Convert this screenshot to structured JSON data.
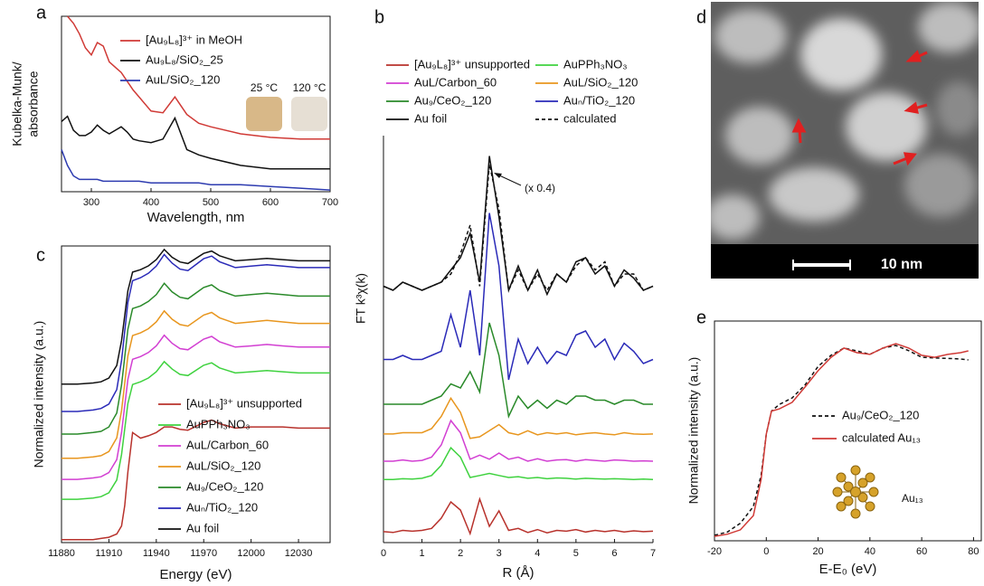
{
  "chart_data": [
    {
      "type": "line",
      "panel_label": "a",
      "xlabel": "Wavelength, nm",
      "ylabel": [
        "Kubelka-Munk/",
        "absorbance"
      ],
      "xlim": [
        250,
        700
      ],
      "ylim": [
        0,
        10
      ],
      "xticks": [
        300,
        400,
        500,
        600,
        700
      ],
      "x": [
        250,
        260,
        270,
        280,
        290,
        300,
        310,
        320,
        330,
        340,
        350,
        360,
        370,
        380,
        400,
        420,
        440,
        460,
        480,
        500,
        550,
        600,
        650,
        700
      ],
      "series": [
        {
          "name": "[Au₉L₈]³⁺ in MeOH",
          "color": "#d03a36",
          "values": [
            null,
            10,
            9.6,
            9.0,
            8.2,
            7.8,
            8.5,
            8.3,
            7.4,
            7.1,
            6.8,
            6.3,
            5.8,
            5.4,
            4.6,
            4.5,
            5.4,
            4.4,
            3.9,
            3.7,
            3.3,
            3.1,
            3.0,
            3.0
          ]
        },
        {
          "name": "Au₉L₈/SiO₂_25",
          "color": "#111111",
          "values": [
            4.0,
            4.3,
            3.5,
            3.2,
            3.2,
            3.4,
            3.8,
            3.5,
            3.3,
            3.5,
            3.7,
            3.4,
            3.0,
            2.9,
            2.8,
            3.0,
            4.2,
            2.4,
            2.1,
            1.9,
            1.5,
            1.3,
            1.3,
            1.3
          ]
        },
        {
          "name": "AuL/SiO₂_120",
          "color": "#2d3bb0",
          "values": [
            2.4,
            1.5,
            0.9,
            0.7,
            0.7,
            0.7,
            0.7,
            0.6,
            0.6,
            0.6,
            0.6,
            0.6,
            0.6,
            0.6,
            0.5,
            0.5,
            0.5,
            0.5,
            0.5,
            0.4,
            0.4,
            0.3,
            0.2,
            0.1
          ]
        }
      ],
      "annotations": [
        "25 °C",
        "120 °C"
      ]
    },
    {
      "type": "line",
      "panel_label": "b",
      "xlabel": "R (Å)",
      "ylabel": "FT k³χ(k)",
      "xlim": [
        0,
        7
      ],
      "ylim": [
        0,
        100
      ],
      "xticks": [
        0,
        1,
        2,
        3,
        4,
        5,
        6,
        7
      ],
      "x": [
        0,
        0.25,
        0.5,
        0.75,
        1,
        1.25,
        1.5,
        1.75,
        2,
        2.25,
        2.5,
        2.75,
        3,
        3.25,
        3.5,
        3.75,
        4,
        4.25,
        4.5,
        4.75,
        5,
        5.25,
        5.5,
        5.75,
        6,
        6.25,
        6.5,
        6.75,
        7
      ],
      "series": [
        {
          "name": "[Au₉L₈]³⁺ unsupported",
          "color": "#b8322c",
          "values": [
            2.7,
            2.5,
            3,
            2.8,
            3,
            3.5,
            6,
            10,
            8,
            2.2,
            10.7,
            4,
            7.8,
            3,
            3.5,
            2.5,
            3.2,
            2.4,
            3,
            2.8,
            3.2,
            2.6,
            3,
            2.7,
            3,
            2.6,
            2.9,
            2.7,
            2.8
          ]
        },
        {
          "name": "AuPPh₃NO₃",
          "color": "#3fd23f",
          "values": [
            15.5,
            15.5,
            15.7,
            15.6,
            15.8,
            16.5,
            19,
            23.3,
            21,
            16,
            16.5,
            17,
            16.5,
            16,
            16.2,
            15.8,
            16,
            15.7,
            15.9,
            15.8,
            15.6,
            15.8,
            15.7,
            15.6,
            15.7,
            15.6,
            15.5,
            15.6,
            15.5
          ]
        },
        {
          "name": "AuL/Carbon_60",
          "color": "#d23fd2",
          "values": [
            20,
            20,
            20.3,
            20,
            20.2,
            21,
            24,
            30,
            27,
            20.5,
            21.5,
            20.5,
            22,
            20.5,
            21,
            20,
            20.6,
            20,
            20.3,
            20.4,
            20,
            20.4,
            20.2,
            20,
            20.3,
            20.2,
            20,
            20.1,
            20
          ]
        },
        {
          "name": "AuL/SiO₂_120",
          "color": "#e8961e",
          "values": [
            26.7,
            26.7,
            27,
            27,
            27,
            28,
            31,
            35.5,
            32,
            25.6,
            26,
            27.5,
            29,
            27,
            26.5,
            27.5,
            26.5,
            27,
            26.7,
            27,
            26.5,
            26.8,
            27,
            26.7,
            26.5,
            27,
            26.7,
            26.6,
            26.7
          ]
        },
        {
          "name": "Au₉/CeO₂_120",
          "color": "#2a8a2a",
          "values": [
            34,
            34,
            34,
            34,
            34,
            35,
            36,
            39,
            38,
            42,
            37,
            54,
            46,
            31,
            36,
            33,
            35,
            33,
            35,
            34,
            36,
            36,
            35,
            35,
            34,
            35,
            35,
            34,
            34
          ]
        },
        {
          "name": "Auₙ/TiO₂_120",
          "color": "#2a2ab8",
          "values": [
            45,
            45,
            46,
            45,
            45,
            46,
            47,
            56,
            48,
            62,
            46,
            81,
            68,
            40,
            50,
            44,
            48,
            44,
            47,
            46,
            51,
            52,
            48,
            50,
            45,
            49,
            47,
            44,
            45
          ]
        },
        {
          "name": "Au foil",
          "color": "#111111",
          "values": [
            63,
            62,
            64,
            63,
            62,
            63,
            64,
            67,
            70,
            76,
            64,
            95,
            80,
            62,
            68,
            62,
            67,
            61,
            66,
            64,
            69,
            70,
            66,
            68,
            63,
            67,
            65,
            62,
            63
          ]
        },
        {
          "name": "calculated",
          "color": "#111111",
          "style": "dashed",
          "values": [
            63,
            62,
            64,
            63,
            62,
            63,
            64,
            66,
            71,
            78,
            63,
            93,
            82,
            62,
            67,
            62,
            66,
            62,
            66,
            64,
            68,
            70,
            67,
            69,
            63,
            66,
            66,
            62,
            63
          ]
        }
      ],
      "annotations": [
        "(x 0.4)"
      ]
    },
    {
      "type": "line",
      "panel_label": "c",
      "xlabel": "Energy (eV)",
      "ylabel": "Normalized intensity (a.u.)",
      "xlim": [
        11880,
        12050
      ],
      "ylim": [
        0,
        100
      ],
      "xticks": [
        11880,
        11910,
        11940,
        11970,
        12000,
        12030
      ],
      "x": [
        11880,
        11890,
        11900,
        11905,
        11910,
        11915,
        11918,
        11920,
        11922,
        11925,
        11930,
        11935,
        11940,
        11945,
        11950,
        11955,
        11960,
        11970,
        11975,
        11980,
        11990,
        12000,
        12010,
        12020,
        12030,
        12040,
        12050
      ],
      "series": [
        {
          "name": "[Au₉L₈]³⁺ unsupported",
          "color": "#b8322c",
          "values": [
            1,
            1,
            1,
            1.4,
            1.8,
            2.9,
            5.6,
            12.4,
            23.8,
            37.1,
            35.2,
            36,
            37.1,
            39,
            39,
            38.2,
            37.9,
            40.5,
            41.3,
            40.1,
            38.6,
            39,
            39,
            39,
            38.6,
            38.6,
            38.6
          ]
        },
        {
          "name": "AuPPh₃NO₃",
          "color": "#3fd23f",
          "values": [
            14.6,
            14.6,
            15,
            15.5,
            16.8,
            21.1,
            29.7,
            38.3,
            46.9,
            53.3,
            54.2,
            55.5,
            57.6,
            61,
            58.5,
            56.7,
            56.3,
            59.8,
            60.6,
            58.9,
            57.2,
            57.6,
            58,
            57.6,
            57.2,
            57.2,
            57.2
          ]
        },
        {
          "name": "AuL/Carbon_60",
          "color": "#d23fd2",
          "values": [
            21.3,
            21.3,
            21.8,
            22.2,
            23.6,
            28,
            37.1,
            46.1,
            55,
            61.8,
            62.7,
            64.1,
            66.3,
            69.9,
            67.2,
            65.4,
            65,
            68.6,
            69.5,
            67.7,
            65.9,
            66.3,
            66.8,
            66.3,
            65.9,
            65.9,
            65.9
          ]
        },
        {
          "name": "AuL/SiO₂_120",
          "color": "#e8961e",
          "values": [
            28.4,
            28.4,
            28.9,
            29.3,
            30.7,
            35.3,
            44.5,
            53.7,
            62.9,
            69.8,
            70.7,
            72.1,
            74.4,
            78.1,
            75.3,
            73.5,
            73,
            76.7,
            77.6,
            75.8,
            73.9,
            74.4,
            74.9,
            74.4,
            73.9,
            73.9,
            73.9
          ]
        },
        {
          "name": "Au₉/CeO₂_120",
          "color": "#2a8a2a",
          "values": [
            36.6,
            36.6,
            37.1,
            37.5,
            39,
            43.7,
            53.1,
            62.5,
            71.9,
            78.9,
            79.8,
            81.3,
            83.6,
            87.4,
            84.5,
            82.7,
            82.2,
            86,
            86.9,
            85,
            83.1,
            83.6,
            84.1,
            83.6,
            83.1,
            83.1,
            83.1
          ]
        },
        {
          "name": "Auₙ/TiO₂_120",
          "color": "#2a2ab8",
          "values": [
            44.2,
            44.2,
            44.7,
            45.2,
            46.7,
            51.6,
            61.4,
            71.2,
            81,
            88.3,
            89.3,
            90.8,
            93.2,
            97.1,
            94.2,
            92.2,
            91.7,
            95.7,
            96.6,
            94.7,
            92.7,
            93.2,
            93.7,
            93.2,
            92.7,
            92.7,
            92.7
          ]
        },
        {
          "name": "Au foil",
          "color": "#111111",
          "values": [
            53.4,
            53.4,
            53.8,
            54.2,
            55.5,
            59.7,
            68.1,
            76.5,
            84.9,
            91.2,
            92,
            93.3,
            95.4,
            98.8,
            96.2,
            94.6,
            94.1,
            97.5,
            98.3,
            96.7,
            95,
            95.4,
            95.8,
            95.4,
            95,
            95,
            95
          ]
        }
      ]
    },
    {
      "type": "line",
      "panel_label": "e",
      "xlabel": "E-E₀ (eV)",
      "ylabel": "Normalized intensity (a.u.)",
      "xlim": [
        -20,
        83
      ],
      "ylim": [
        0,
        100
      ],
      "xticks": [
        -20,
        0,
        20,
        40,
        60,
        80
      ],
      "x": [
        -20,
        -15,
        -10,
        -5,
        -2,
        0,
        2,
        5,
        10,
        15,
        20,
        25,
        30,
        35,
        40,
        45,
        50,
        55,
        60,
        65,
        70,
        75,
        78
      ],
      "series": [
        {
          "name": "Au₉/CeO₂_120",
          "color": "#111111",
          "style": "dashed",
          "values": [
            2.5,
            4,
            8,
            15.6,
            30,
            48.6,
            59,
            62,
            65,
            71,
            79.4,
            84.4,
            87.7,
            86.4,
            84.8,
            87.7,
            88.9,
            86.5,
            83.5,
            83.2,
            83,
            82.7,
            82.3
          ]
        },
        {
          "name": "calculated Au₁₃",
          "color": "#d03a36",
          "values": [
            2,
            3,
            5,
            11.5,
            28,
            48.6,
            59,
            60,
            63,
            70,
            77.4,
            83.5,
            87.7,
            85.6,
            84.8,
            87.7,
            89.7,
            87.7,
            84.4,
            83.5,
            84.8,
            85.6,
            86.4
          ]
        }
      ],
      "annotations": [
        "Au₁₃"
      ]
    }
  ],
  "image": {
    "label": "d",
    "scale_bar": "10 nm"
  }
}
